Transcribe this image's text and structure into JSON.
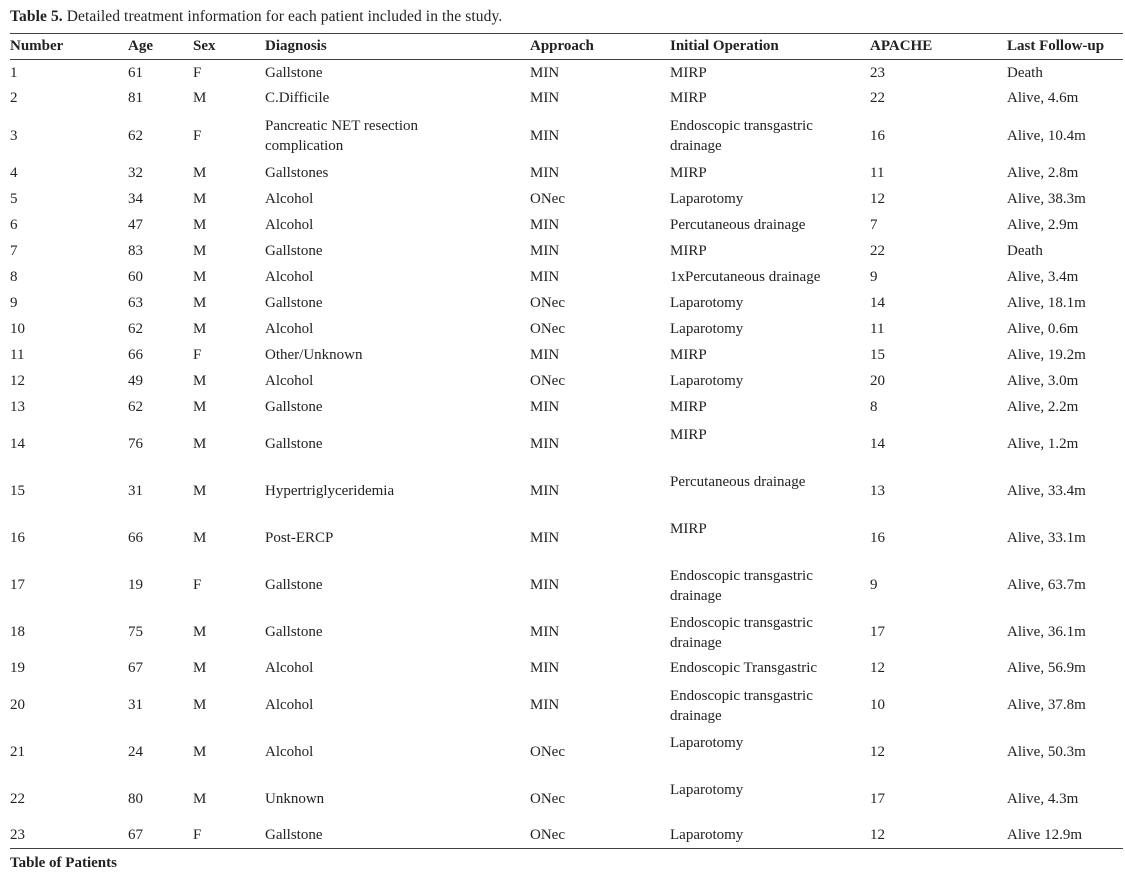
{
  "title": {
    "label": "Table 5.",
    "text": " Detailed treatment information for each patient included in the study."
  },
  "footer": {
    "caption": "Table of Patients"
  },
  "table": {
    "columns": [
      "Number",
      "Age",
      "Sex",
      "Diagnosis",
      "Approach",
      "Initial Operation",
      "APACHE",
      "Last Follow-up"
    ],
    "rows": [
      {
        "number": "1",
        "age": "61",
        "sex": "F",
        "diagnosis": "Gallstone",
        "approach": "MIN",
        "operation": "MIRP",
        "apache": "23",
        "followup": "Death",
        "size": "normal"
      },
      {
        "number": "2",
        "age": "81",
        "sex": "M",
        "diagnosis": "C.Difficile",
        "approach": "MIN",
        "operation": "MIRP",
        "apache": "22",
        "followup": "Alive, 4.6m",
        "size": "normal"
      },
      {
        "number": "3",
        "age": "62",
        "sex": "F",
        "diagnosis": "Pancreatic NET resection complication",
        "approach": "MIN",
        "operation": "Endoscopic transgastric drainage",
        "apache": "16",
        "followup": "Alive, 10.4m",
        "size": "auto"
      },
      {
        "number": "4",
        "age": "32",
        "sex": "M",
        "diagnosis": "Gallstones",
        "approach": "MIN",
        "operation": "MIRP",
        "apache": "11",
        "followup": "Alive, 2.8m",
        "size": "normal"
      },
      {
        "number": "5",
        "age": "34",
        "sex": "M",
        "diagnosis": "Alcohol",
        "approach": "ONec",
        "operation": "Laparotomy",
        "apache": "12",
        "followup": "Alive, 38.3m",
        "size": "normal"
      },
      {
        "number": "6",
        "age": "47",
        "sex": "M",
        "diagnosis": "Alcohol",
        "approach": "MIN",
        "operation": "Percutaneous drainage",
        "apache": "7",
        "followup": "Alive, 2.9m",
        "size": "normal"
      },
      {
        "number": "7",
        "age": "83",
        "sex": "M",
        "diagnosis": "Gallstone",
        "approach": "MIN",
        "operation": "MIRP",
        "apache": "22",
        "followup": "Death",
        "size": "normal"
      },
      {
        "number": "8",
        "age": "60",
        "sex": "M",
        "diagnosis": "Alcohol",
        "approach": "MIN",
        "operation": "1xPercutaneous drainage",
        "apache": "9",
        "followup": "Alive, 3.4m",
        "size": "normal"
      },
      {
        "number": "9",
        "age": "63",
        "sex": "M",
        "diagnosis": "Gallstone",
        "approach": "ONec",
        "operation": "Laparotomy",
        "apache": "14",
        "followup": "Alive, 18.1m",
        "size": "normal"
      },
      {
        "number": "10",
        "age": "62",
        "sex": "M",
        "diagnosis": "Alcohol",
        "approach": "ONec",
        "operation": "Laparotomy",
        "apache": "11",
        "followup": "Alive, 0.6m",
        "size": "normal"
      },
      {
        "number": "11",
        "age": "66",
        "sex": "F",
        "diagnosis": "Other/Unknown",
        "approach": "MIN",
        "operation": "MIRP",
        "apache": "15",
        "followup": "Alive, 19.2m",
        "size": "normal"
      },
      {
        "number": "12",
        "age": "49",
        "sex": "M",
        "diagnosis": "Alcohol",
        "approach": "ONec",
        "operation": "Laparotomy",
        "apache": "20",
        "followup": "Alive, 3.0m",
        "size": "normal"
      },
      {
        "number": "13",
        "age": "62",
        "sex": "M",
        "diagnosis": "Gallstone",
        "approach": "MIN",
        "operation": "MIRP",
        "apache": "8",
        "followup": "Alive, 2.2m",
        "size": "normal"
      },
      {
        "number": "14",
        "age": "76",
        "sex": "M",
        "diagnosis": "Gallstone",
        "approach": "MIN",
        "operation": "MIRP",
        "apache": "14",
        "followup": "Alive, 1.2m",
        "size": "tall"
      },
      {
        "number": "15",
        "age": "31",
        "sex": "M",
        "diagnosis": "Hypertriglyceridemia",
        "approach": "MIN",
        "operation": "Percutaneous drainage",
        "apache": "13",
        "followup": "Alive, 33.4m",
        "size": "tall"
      },
      {
        "number": "16",
        "age": "66",
        "sex": "M",
        "diagnosis": "Post-ERCP",
        "approach": "MIN",
        "operation": "MIRP",
        "apache": "16",
        "followup": "Alive, 33.1m",
        "size": "tall"
      },
      {
        "number": "17",
        "age": "19",
        "sex": "F",
        "diagnosis": "Gallstone",
        "approach": "MIN",
        "operation": "Endoscopic transgastric drainage",
        "apache": "9",
        "followup": "Alive, 63.7m",
        "size": "tall"
      },
      {
        "number": "18",
        "age": "75",
        "sex": "M",
        "diagnosis": "Gallstone",
        "approach": "MIN",
        "operation": "Endoscopic transgastric drainage",
        "apache": "17",
        "followup": "Alive, 36.1m",
        "size": "tall"
      },
      {
        "number": "19",
        "age": "67",
        "sex": "M",
        "diagnosis": "Alcohol",
        "approach": "MIN",
        "operation": "Endoscopic Transgastric",
        "apache": "12",
        "followup": "Alive, 56.9m",
        "size": "normal"
      },
      {
        "number": "20",
        "age": "31",
        "sex": "M",
        "diagnosis": "Alcohol",
        "approach": "MIN",
        "operation": "Endoscopic transgastric drainage",
        "apache": "10",
        "followup": "Alive, 37.8m",
        "size": "tall"
      },
      {
        "number": "21",
        "age": "24",
        "sex": "M",
        "diagnosis": "Alcohol",
        "approach": "ONec",
        "operation": "Laparotomy",
        "apache": "12",
        "followup": "Alive, 50.3m",
        "size": "tall"
      },
      {
        "number": "22",
        "age": "80",
        "sex": "M",
        "diagnosis": "Unknown",
        "approach": "ONec",
        "operation": "Laparotomy",
        "apache": "17",
        "followup": "Alive, 4.3m",
        "size": "tall"
      },
      {
        "number": "23",
        "age": "67",
        "sex": "F",
        "diagnosis": "Gallstone",
        "approach": "ONec",
        "operation": "Laparotomy",
        "apache": "12",
        "followup": "Alive 12.9m",
        "size": "normal"
      }
    ]
  }
}
